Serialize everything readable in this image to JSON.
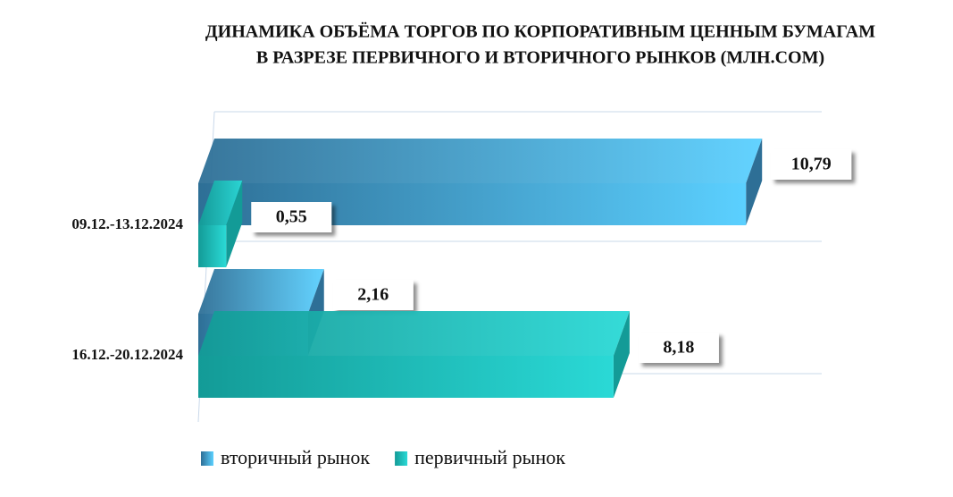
{
  "chart_data": {
    "type": "bar3d",
    "title": [
      "ДИНАМИКА ОБЪЁМА ТОРГОВ ПО КОРПОРАТИВНЫМ ЦЕННЫМ БУМАГАМ",
      "В РАЗРЕЗЕ ПЕРВИЧНОГО И ВТОРИЧНОГО РЫНКОВ  (МЛН.СОМ)"
    ],
    "categories": [
      "09.12.-13.12.2024",
      "16.12.-20.12.2024"
    ],
    "series": [
      {
        "name": "вторичный рынок",
        "color": [
          "#2e6f96",
          "#5bd0ff"
        ],
        "values": [
          10.79,
          2.16
        ],
        "value_labels": [
          "10,79",
          "2,16"
        ]
      },
      {
        "name": "первичный рынок",
        "color": [
          "#139b97",
          "#2ad9d6"
        ],
        "values": [
          0.55,
          8.18
        ],
        "value_labels": [
          "0,55",
          "8,18"
        ]
      }
    ],
    "xlim": [
      0,
      12
    ],
    "legend": "bottom"
  }
}
